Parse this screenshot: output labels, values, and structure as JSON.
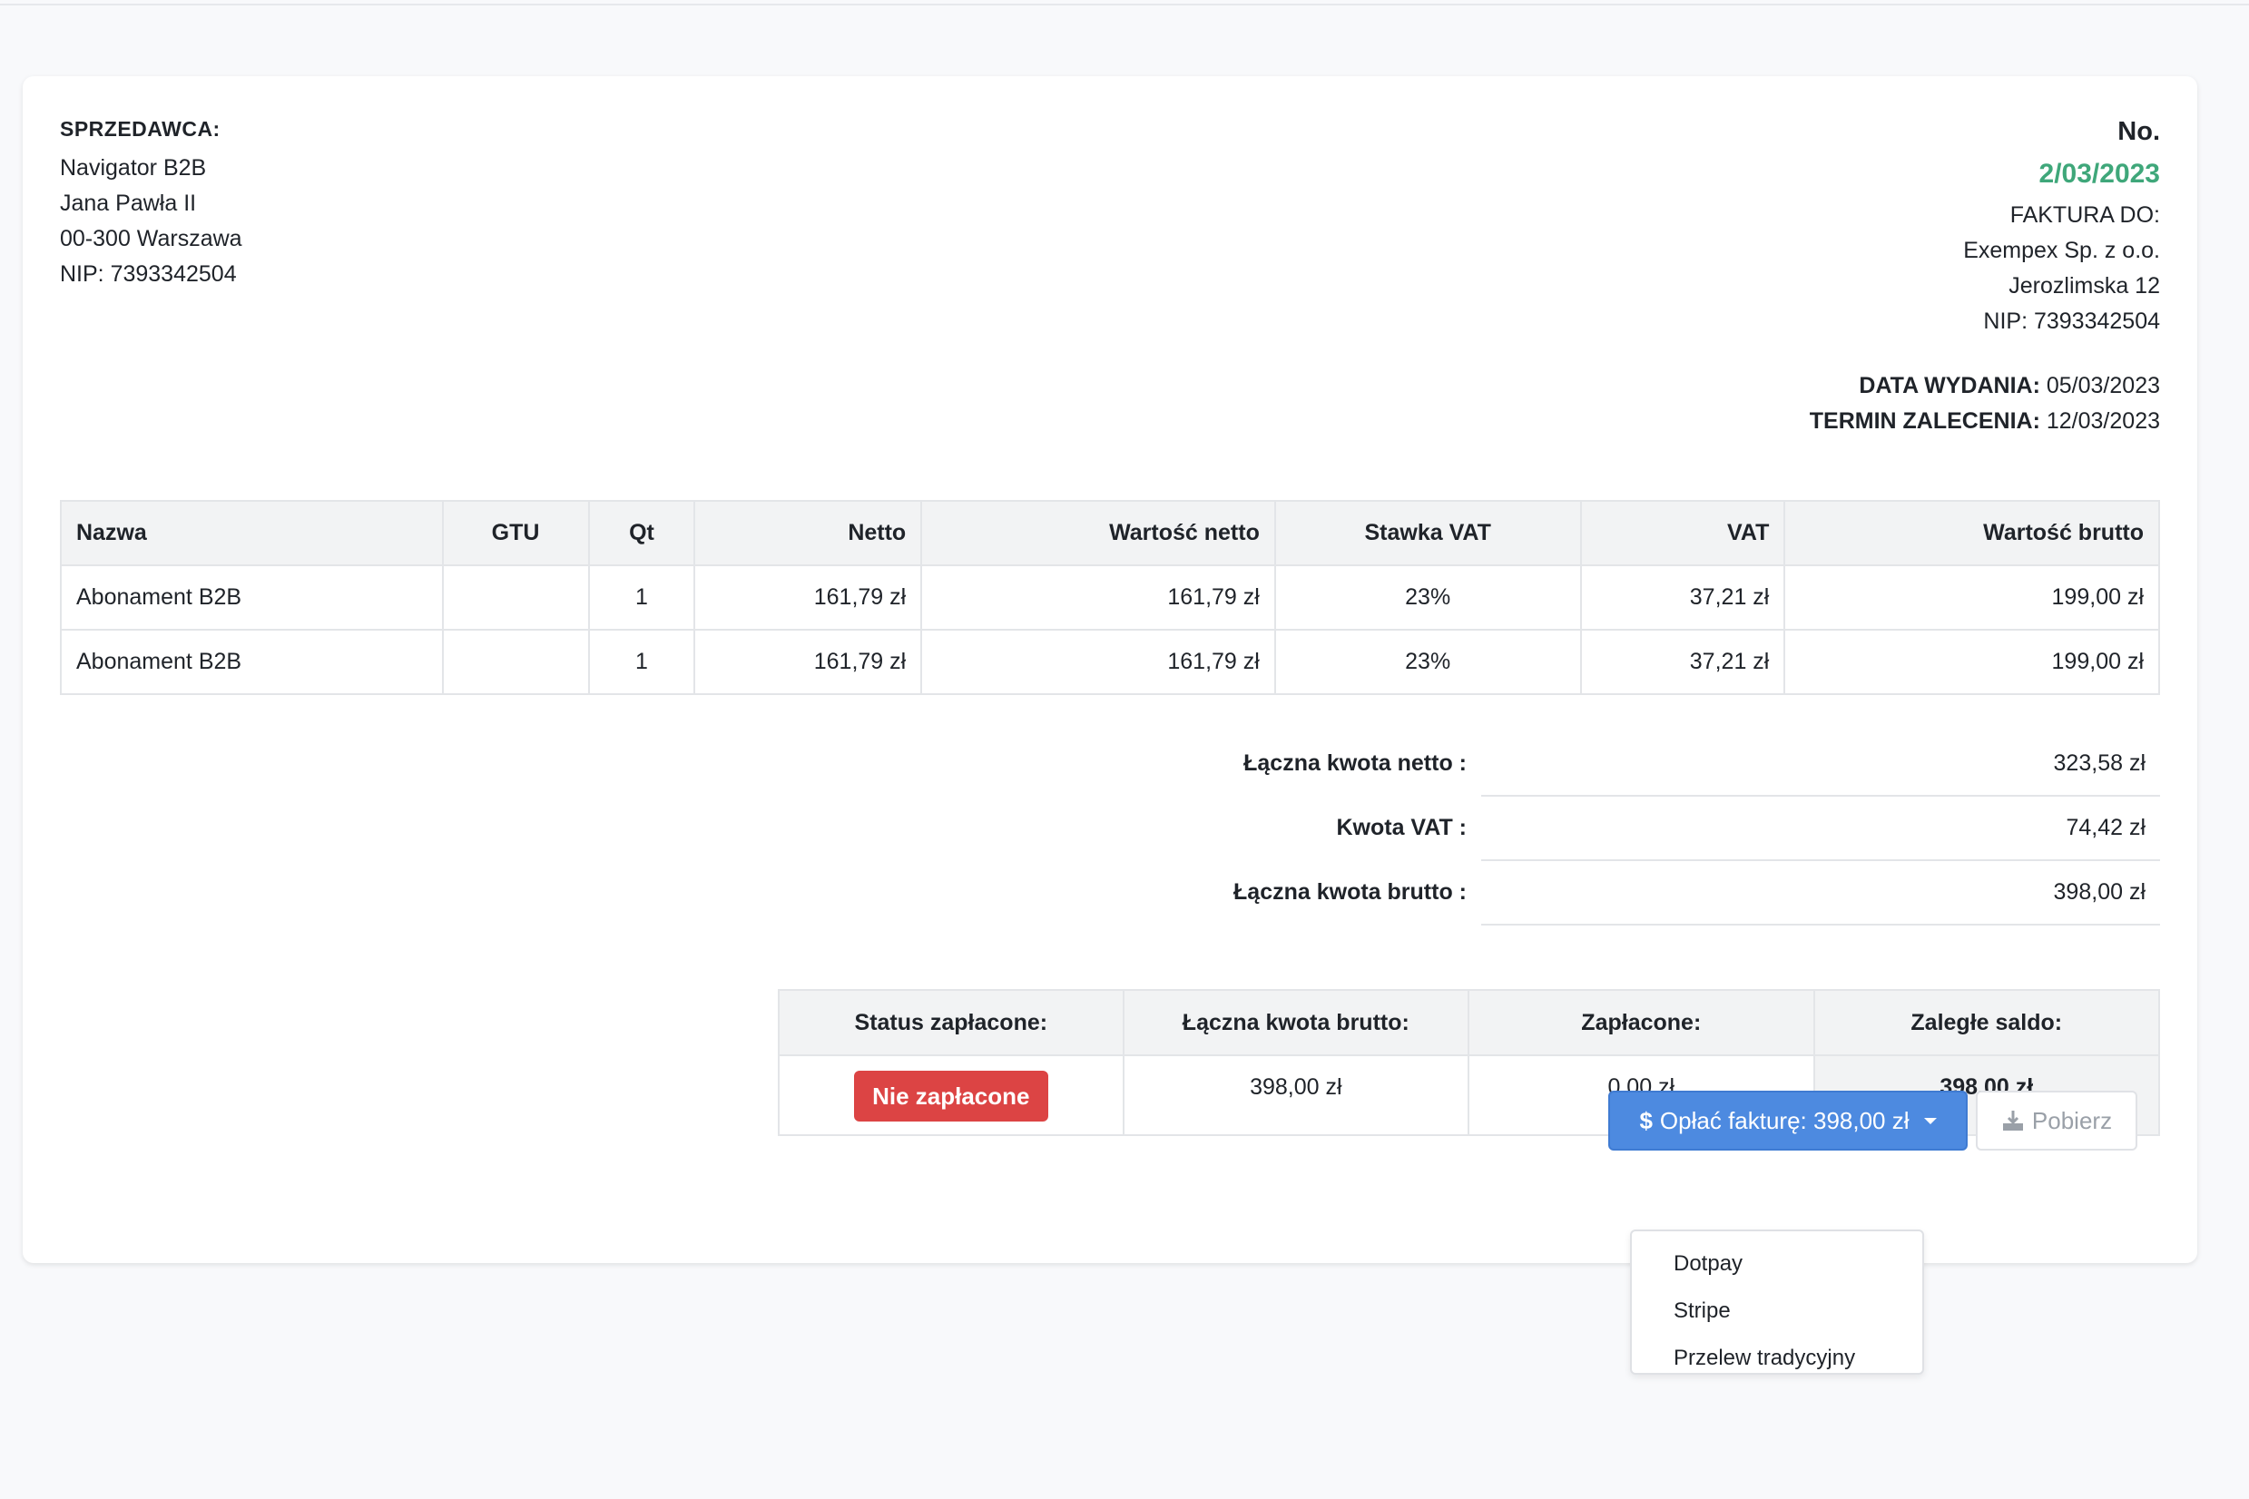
{
  "seller": {
    "label": "SPRZEDAWCA:",
    "lines": [
      "Navigator B2B",
      "Jana Pawła II",
      "00-300 Warszawa",
      "NIP: 7393342504"
    ]
  },
  "invoice": {
    "no_label": "No.",
    "number": "2/03/2023",
    "bill_to_label": "FAKTURA DO:",
    "buyer_lines": [
      "Exempex Sp. z o.o.",
      "Jerozlimska 12",
      "NIP: 7393342504"
    ],
    "issue_label": "DATA WYDANIA:",
    "issue_date": "05/03/2023",
    "due_label": "TERMIN ZALECENIA:",
    "due_date": "12/03/2023",
    "accent_color": "#3fa77a"
  },
  "items": {
    "headers": [
      "Nazwa",
      "GTU",
      "Qt",
      "Netto",
      "Wartość netto",
      "Stawka VAT",
      "VAT",
      "Wartość brutto"
    ],
    "rows": [
      [
        "Abonament B2B",
        "",
        "1",
        "161,79 zł",
        "161,79 zł",
        "23%",
        "37,21 zł",
        "199,00 zł"
      ],
      [
        "Abonament B2B",
        "",
        "1",
        "161,79 zł",
        "161,79 zł",
        "23%",
        "37,21 zł",
        "199,00 zł"
      ]
    ]
  },
  "totals": [
    {
      "label": "Łączna kwota netto :",
      "value": "323,58 zł"
    },
    {
      "label": "Kwota VAT :",
      "value": "74,42 zł"
    },
    {
      "label": "Łączna kwota brutto :",
      "value": "398,00 zł"
    }
  ],
  "payment_status": {
    "headers": [
      "Status zapłacone:",
      "Łączna kwota brutto:",
      "Zapłacone:",
      "Zaległe saldo:"
    ],
    "status_badge": "Nie zapłacone",
    "gross": "398,00 zł",
    "paid": "0,00 zł",
    "balance": "398,00 zł",
    "badge_color": "#dc4444"
  },
  "actions": {
    "pay_label": "Opłać fakturę: 398,00 zł",
    "download_label": "Pobierz",
    "pay_color": "#4d8ae0",
    "menu": [
      "Dotpay",
      "Stripe",
      "Przelew tradycyjny"
    ]
  }
}
